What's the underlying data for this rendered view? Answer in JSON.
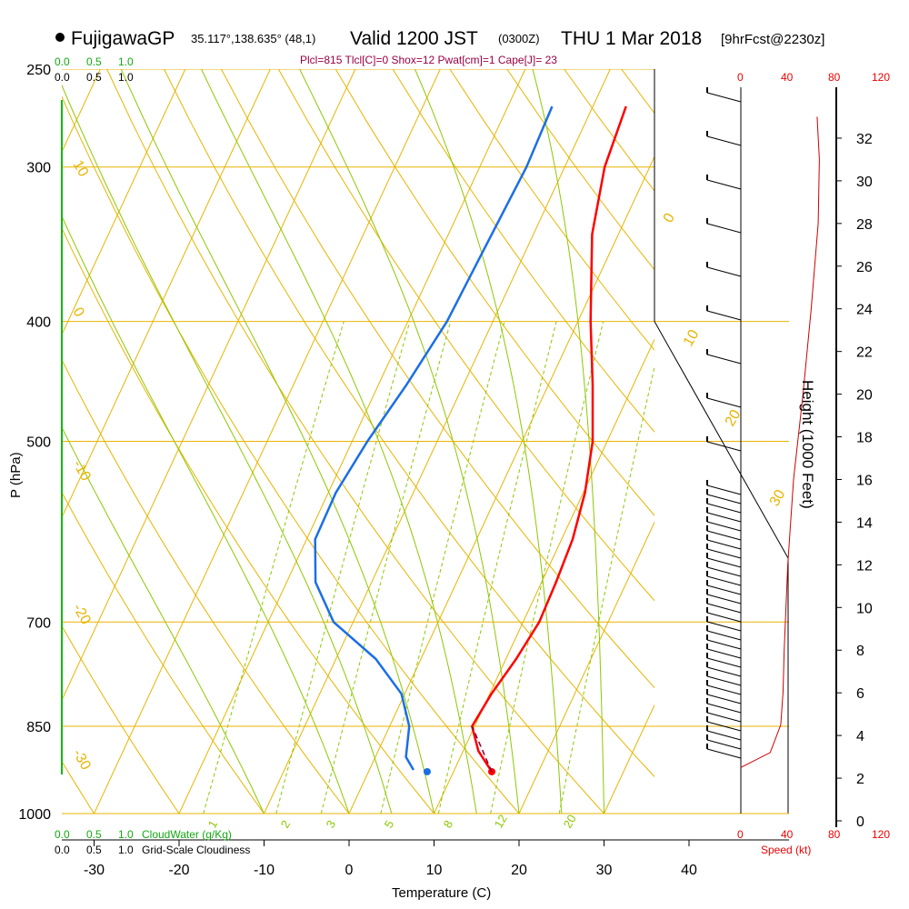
{
  "header": {
    "station": "FujigawaGP",
    "coords": "35.117°,138.635° (48,1)",
    "valid": "Valid 1200 JST",
    "zulu": "(0300Z)",
    "date": "THU 1 Mar 2018",
    "forecast": "[9hrFcst@2230z]",
    "indices": "Plcl=815 Tlcl[C]=0 Shox=12 Pwat[cm]=1 Cape[J]= 23"
  },
  "legend": {
    "cloudwater_label": "CloudWater (g/Kg)",
    "cloudiness_label": "Grid-Scale Cloudiness",
    "cw_ticks": [
      "0.0",
      "0.5",
      "1.0"
    ],
    "cl_ticks": [
      "0.0",
      "0.5",
      "1.0"
    ],
    "speed_label": "Speed (kt)",
    "speed_ticks": [
      "0",
      "40",
      "80",
      "120"
    ]
  },
  "colors": {
    "temperature": "#ff0000",
    "dewpoint": "#1a6ee6",
    "isotherm": "#e8b400",
    "mixing_ratio": "#8cc800",
    "cloudwater": "#11bb11"
  },
  "chart_data": {
    "type": "line",
    "subtype": "skew-t log-p sounding",
    "xlabel": "Temperature (C)",
    "ylabel": "P (hPa)",
    "y2label": "Height (1000 Feet)",
    "xticks": [
      -30,
      -20,
      -10,
      0,
      10,
      20,
      30,
      40
    ],
    "yticks": [
      250,
      300,
      400,
      500,
      700,
      850,
      1000
    ],
    "height_ticks": [
      0,
      2,
      4,
      6,
      8,
      10,
      12,
      14,
      16,
      18,
      20,
      22,
      24,
      26,
      28,
      30,
      32
    ],
    "isotherm_labels": [
      "10",
      "0",
      "-10",
      "-20",
      "-30",
      "0",
      "10",
      "20",
      "30"
    ],
    "mixing_ratio_labels": [
      "1",
      "2",
      "3",
      "5",
      "8",
      "12",
      "20"
    ],
    "temperature_profile": [
      {
        "p": 268,
        "t": -6.1
      },
      {
        "p": 300,
        "t": -5.3
      },
      {
        "p": 340,
        "t": -3.1
      },
      {
        "p": 400,
        "t": 1.5
      },
      {
        "p": 450,
        "t": 5.2
      },
      {
        "p": 500,
        "t": 8.3
      },
      {
        "p": 550,
        "t": 10.2
      },
      {
        "p": 600,
        "t": 11.3
      },
      {
        "p": 650,
        "t": 11.7
      },
      {
        "p": 700,
        "t": 11.9
      },
      {
        "p": 750,
        "t": 11.2
      },
      {
        "p": 800,
        "t": 10.2
      },
      {
        "p": 850,
        "t": 9.7
      },
      {
        "p": 890,
        "t": 11.8
      },
      {
        "p": 925,
        "t": 14.5
      }
    ],
    "dewpoint_profile": [
      {
        "p": 268,
        "t": -14.8
      },
      {
        "p": 300,
        "t": -14.5
      },
      {
        "p": 350,
        "t": -15.0
      },
      {
        "p": 400,
        "t": -15.4
      },
      {
        "p": 450,
        "t": -16.7
      },
      {
        "p": 500,
        "t": -18.2
      },
      {
        "p": 550,
        "t": -19.1
      },
      {
        "p": 600,
        "t": -19.0
      },
      {
        "p": 650,
        "t": -16.6
      },
      {
        "p": 700,
        "t": -12.3
      },
      {
        "p": 750,
        "t": -5.3
      },
      {
        "p": 800,
        "t": -0.4
      },
      {
        "p": 850,
        "t": 2.3
      },
      {
        "p": 900,
        "t": 3.6
      },
      {
        "p": 922,
        "t": 5.2
      }
    ],
    "surface_temperature": {
      "p": 925,
      "t": 14.5
    },
    "surface_dewpoint": {
      "p": 925,
      "t": 6.9
    },
    "wind_speed_profile_kt": [
      {
        "h": 2.5,
        "v": 0
      },
      {
        "h": 3.2,
        "v": 25
      },
      {
        "h": 4.5,
        "v": 34
      },
      {
        "h": 6.0,
        "v": 36
      },
      {
        "h": 8.0,
        "v": 37
      },
      {
        "h": 12.0,
        "v": 40
      },
      {
        "h": 16.0,
        "v": 45
      },
      {
        "h": 20.0,
        "v": 53
      },
      {
        "h": 24.0,
        "v": 60
      },
      {
        "h": 28.0,
        "v": 66
      },
      {
        "h": 31.0,
        "v": 67
      },
      {
        "h": 33.0,
        "v": 65
      }
    ],
    "grid": true
  }
}
